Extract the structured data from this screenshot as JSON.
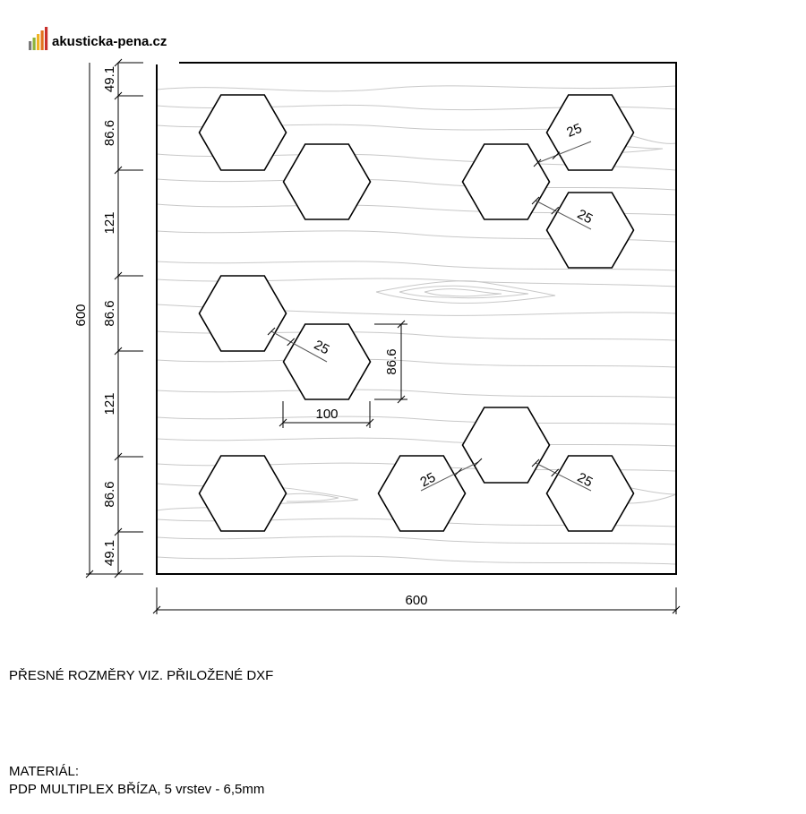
{
  "logo": {
    "text": "akusticka-pena.cz",
    "bar_colors": [
      "#7a7a7a",
      "#8db33a",
      "#f0b323",
      "#e2711d",
      "#c9302c"
    ]
  },
  "panel": {
    "width_label": "600",
    "height_label": "600"
  },
  "left_dimensions": [
    "49.1",
    "86.6",
    "121",
    "86.6",
    "121",
    "86.6",
    "49.1"
  ],
  "hexagon_dimensions": {
    "width_label": "100",
    "height_label": "86.6"
  },
  "gap_labels": [
    "25",
    "25",
    "25",
    "25",
    "25"
  ],
  "notes": {
    "exact_dimensions": "PŘESNÉ ROZMĚRY VIZ. PŘILOŽENÉ DXF",
    "material_title": "MATERIÁL:",
    "material_value": "PDP MULTIPLEX BŘÍZA, 5 vrstev - 6,5mm"
  },
  "colors": {
    "line": "#000000",
    "wood_grain": "#c8c8c8"
  }
}
